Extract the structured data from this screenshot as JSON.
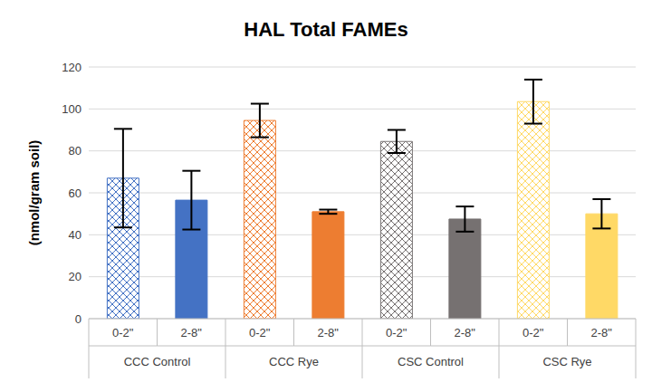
{
  "chart_data": {
    "type": "bar",
    "title": "HAL Total FAMEs",
    "y_label": "(nmol/gram soil)",
    "categories": [
      "0-2\"",
      "2-8\"",
      "0-2\"",
      "2-8\"",
      "0-2\"",
      "2-8\"",
      "0-2\"",
      "2-8\""
    ],
    "groups": [
      "CCC Control",
      "CCC Rye",
      "CSC Control",
      "CSC Rye"
    ],
    "values": [
      67,
      56.5,
      94.5,
      51,
      84.5,
      47.5,
      103.5,
      50
    ],
    "errors": [
      23.5,
      14,
      8,
      1,
      5.5,
      6,
      10.5,
      7
    ],
    "colors": [
      "#4472c4",
      "#4472c4",
      "#ed7d31",
      "#ed7d31",
      "#767171",
      "#767171",
      "#ffd966",
      "#ffd966"
    ],
    "ylim": [
      0,
      120
    ],
    "yticks": [
      0,
      20,
      40,
      60,
      80,
      100,
      120
    ],
    "grid": true
  }
}
